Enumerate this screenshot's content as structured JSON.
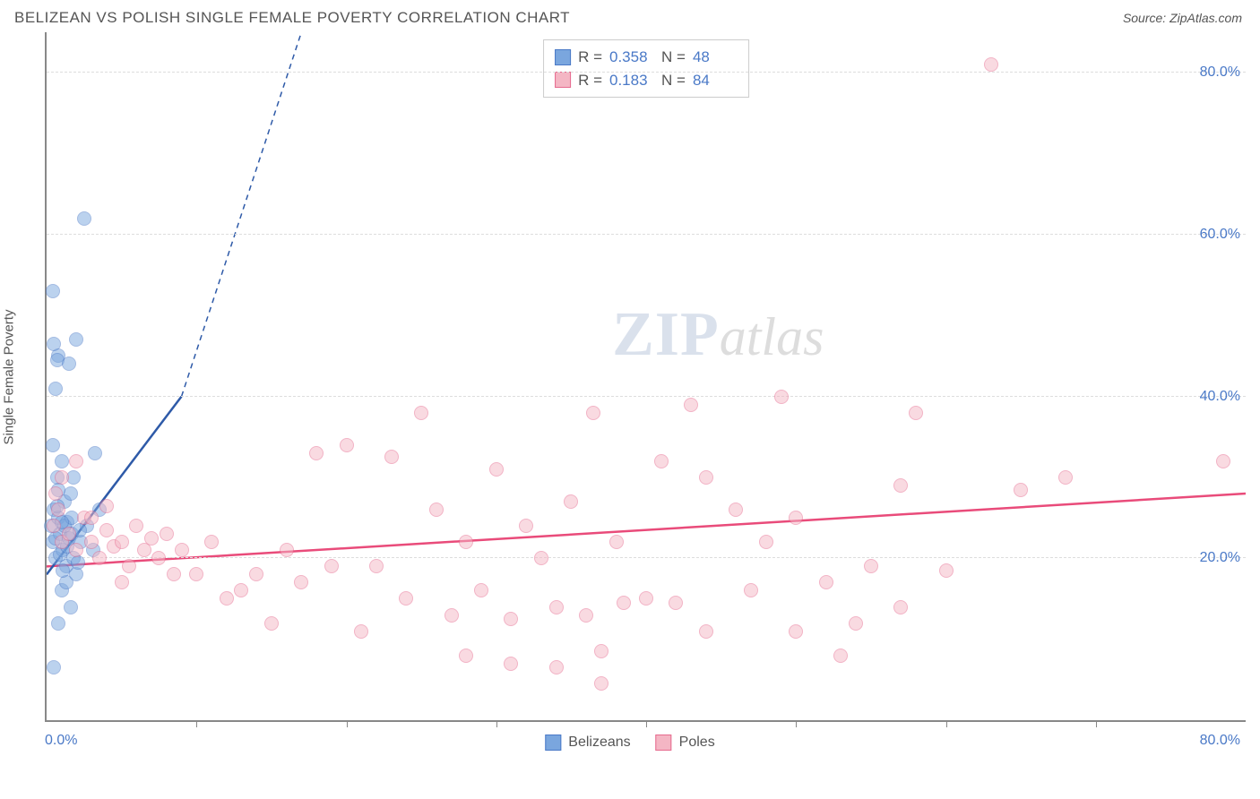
{
  "header": {
    "title": "BELIZEAN VS POLISH SINGLE FEMALE POVERTY CORRELATION CHART",
    "source": "Source: ZipAtlas.com"
  },
  "watermark": {
    "zip": "ZIP",
    "atlas": "atlas"
  },
  "chart": {
    "type": "scatter",
    "xlim": [
      0,
      80
    ],
    "ylim": [
      0,
      85
    ],
    "y_axis_title": "Single Female Poverty",
    "y_ticks": [
      20,
      40,
      60,
      80
    ],
    "y_tick_labels": [
      "20.0%",
      "40.0%",
      "60.0%",
      "80.0%"
    ],
    "x_ticks": [
      10,
      20,
      30,
      40,
      50,
      60,
      70
    ],
    "x_label_min": "0.0%",
    "x_label_max": "80.0%",
    "grid_color": "#dddddd",
    "axis_color": "#888888",
    "background_color": "#ffffff",
    "marker_radius": 8,
    "marker_opacity": 0.5,
    "series": [
      {
        "name": "Belizeans",
        "color": "#7aa6de",
        "border": "#4a79c7",
        "R": "0.358",
        "N": "48",
        "trend": {
          "x1": 0,
          "y1": 18,
          "x2": 9,
          "y2": 40,
          "dash_to_x": 17,
          "dash_to_y": 85,
          "color": "#2e5aa8",
          "width": 2.5
        },
        "points": [
          [
            0.3,
            24
          ],
          [
            0.4,
            22
          ],
          [
            0.5,
            26
          ],
          [
            0.6,
            20
          ],
          [
            0.7,
            30
          ],
          [
            0.8,
            25
          ],
          [
            0.9,
            23
          ],
          [
            1.0,
            32
          ],
          [
            1.1,
            21
          ],
          [
            1.2,
            27
          ],
          [
            1.3,
            19
          ],
          [
            1.4,
            24.5
          ],
          [
            1.5,
            22.5
          ],
          [
            1.6,
            28
          ],
          [
            1.7,
            23
          ],
          [
            1.8,
            20
          ],
          [
            0.4,
            34
          ],
          [
            0.6,
            41
          ],
          [
            0.8,
            45
          ],
          [
            0.7,
            44.5
          ],
          [
            0.5,
            46.5
          ],
          [
            0.4,
            53
          ],
          [
            1.5,
            44
          ],
          [
            2,
            47
          ],
          [
            2.5,
            62
          ],
          [
            3.2,
            33
          ],
          [
            1.0,
            16
          ],
          [
            1.3,
            17
          ],
          [
            1.6,
            14
          ],
          [
            0.8,
            12
          ],
          [
            0.5,
            6.5
          ],
          [
            2,
            18
          ],
          [
            2.3,
            22
          ],
          [
            2.7,
            24
          ],
          [
            3.1,
            21
          ],
          [
            3.5,
            26
          ],
          [
            1.8,
            30
          ],
          [
            2.1,
            19.5
          ],
          [
            1.2,
            24
          ],
          [
            0.7,
            26.5
          ],
          [
            0.9,
            20.5
          ],
          [
            1.1,
            18.5
          ],
          [
            1.4,
            21.5
          ],
          [
            1.7,
            25
          ],
          [
            2.2,
            23.5
          ],
          [
            0.6,
            22.5
          ],
          [
            0.8,
            28.5
          ],
          [
            1.0,
            24.5
          ]
        ]
      },
      {
        "name": "Poles",
        "color": "#f4b6c4",
        "border": "#e66a8e",
        "R": "0.183",
        "N": "84",
        "trend": {
          "x1": 0,
          "y1": 19,
          "x2": 80,
          "y2": 28,
          "color": "#e94b7a",
          "width": 2.5
        },
        "points": [
          [
            0.5,
            24
          ],
          [
            1,
            22
          ],
          [
            1.5,
            23
          ],
          [
            2,
            21
          ],
          [
            2.5,
            25
          ],
          [
            3,
            22
          ],
          [
            3.5,
            20
          ],
          [
            4,
            23.5
          ],
          [
            4.5,
            21.5
          ],
          [
            5,
            22
          ],
          [
            5.5,
            19
          ],
          [
            6,
            24
          ],
          [
            6.5,
            21
          ],
          [
            7,
            22.5
          ],
          [
            7.5,
            20
          ],
          [
            8,
            23
          ],
          [
            8.5,
            18
          ],
          [
            9,
            21
          ],
          [
            10,
            18
          ],
          [
            11,
            22
          ],
          [
            12,
            15
          ],
          [
            13,
            16
          ],
          [
            14,
            18
          ],
          [
            15,
            12
          ],
          [
            16,
            21
          ],
          [
            17,
            17
          ],
          [
            18,
            33
          ],
          [
            19,
            19
          ],
          [
            20,
            34
          ],
          [
            21,
            11
          ],
          [
            22,
            19
          ],
          [
            23,
            32.5
          ],
          [
            24,
            15
          ],
          [
            25,
            38
          ],
          [
            26,
            26
          ],
          [
            27,
            13
          ],
          [
            28,
            22
          ],
          [
            29,
            16
          ],
          [
            30,
            31
          ],
          [
            31,
            12.5
          ],
          [
            32,
            24
          ],
          [
            33,
            20
          ],
          [
            34,
            14
          ],
          [
            35,
            27
          ],
          [
            36,
            13
          ],
          [
            36.5,
            38
          ],
          [
            37,
            8.5
          ],
          [
            38,
            22
          ],
          [
            38.5,
            14.5
          ],
          [
            40,
            15
          ],
          [
            41,
            32
          ],
          [
            43,
            39
          ],
          [
            44,
            30
          ],
          [
            46,
            26
          ],
          [
            48,
            22
          ],
          [
            49,
            40
          ],
          [
            50,
            11
          ],
          [
            52,
            17
          ],
          [
            55,
            19
          ],
          [
            57,
            29
          ],
          [
            58,
            38
          ],
          [
            60,
            18.5
          ],
          [
            63,
            81
          ],
          [
            65,
            28.5
          ],
          [
            68,
            30
          ],
          [
            78.5,
            32
          ],
          [
            34,
            6.5
          ],
          [
            31,
            7
          ],
          [
            37,
            4.5
          ],
          [
            53,
            8
          ],
          [
            47,
            16
          ],
          [
            44,
            11
          ],
          [
            50,
            25
          ],
          [
            54,
            12
          ],
          [
            57,
            14
          ],
          [
            42,
            14.5
          ],
          [
            28,
            8
          ],
          [
            2,
            32
          ],
          [
            1,
            30
          ],
          [
            0.8,
            26
          ],
          [
            0.6,
            28
          ],
          [
            3,
            25
          ],
          [
            4,
            26.5
          ],
          [
            5,
            17
          ]
        ]
      }
    ],
    "stats_box": {
      "r_label": "R =",
      "n_label": "N ="
    },
    "legend": {
      "items": [
        "Belizeans",
        "Poles"
      ]
    }
  }
}
